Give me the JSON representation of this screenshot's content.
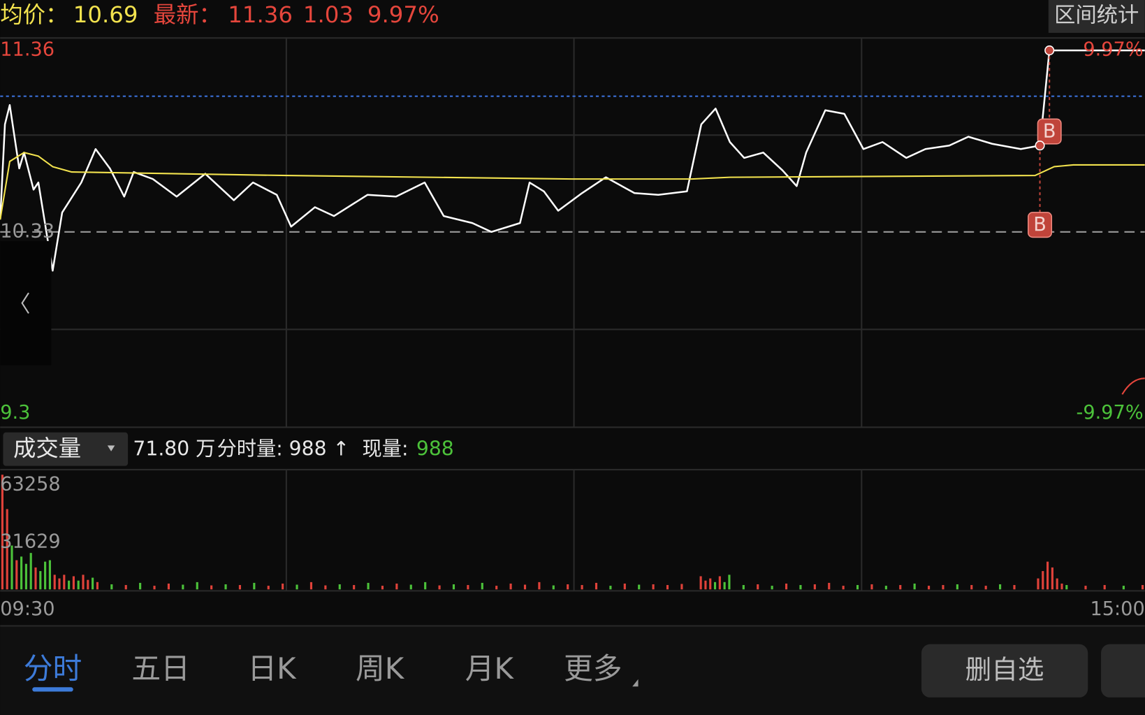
{
  "quote": {
    "avg_label": "均价：",
    "avg": "10.69",
    "last_label": "最新：",
    "last": "11.36",
    "change": "1.03",
    "change_pct": "9.97%",
    "range_stats": "区间统计"
  },
  "volume_header": {
    "selector": "成交量",
    "total": "71.80 万",
    "tick_volume": "分时量: 988 ↑",
    "now_label": "现量:",
    "now_value": "988"
  },
  "tabs": [
    "分时",
    "五日",
    "日K",
    "周K",
    "月K",
    "更多"
  ],
  "button": "删自选",
  "chart_data": [
    {
      "type": "line",
      "xlim": [
        0,
        240
      ],
      "ylim": [
        9.3,
        11.36
      ],
      "yticks": [
        11.36,
        10.33,
        9.3
      ],
      "ytick_colors": [
        "#e5463c",
        "#9a9a9a",
        "#4cc23a"
      ],
      "y2lim": [
        -9.97,
        9.97
      ],
      "y2ticks": [
        {
          "value": 9.97,
          "label": "9.97%"
        },
        {
          "value": -9.97,
          "label": "-9.97%"
        }
      ],
      "y2tick_colors": [
        "#e5463c",
        "#4cc23a"
      ],
      "ref_line": 11.1,
      "ref_color": "#3b6fd6",
      "series": [
        {
          "color": "#ffffff",
          "x": [
            0,
            1,
            2,
            4,
            5,
            7,
            8,
            11,
            13,
            17,
            20,
            23,
            26,
            28,
            32,
            37,
            43,
            49,
            53,
            58,
            61,
            66,
            70,
            77,
            83,
            89,
            93,
            99,
            103,
            109,
            111,
            114,
            117,
            122,
            127,
            133,
            138,
            144,
            147,
            150,
            153,
            156,
            160,
            164,
            167,
            169,
            173,
            177,
            181,
            185,
            190,
            194,
            199,
            203,
            208,
            214,
            218,
            220,
            240
          ],
          "values": [
            10.4,
            10.94,
            11.05,
            10.69,
            10.78,
            10.57,
            10.61,
            10.11,
            10.44,
            10.61,
            10.8,
            10.69,
            10.53,
            10.67,
            10.63,
            10.53,
            10.66,
            10.51,
            10.61,
            10.54,
            10.36,
            10.47,
            10.42,
            10.54,
            10.53,
            10.61,
            10.42,
            10.38,
            10.33,
            10.38,
            10.61,
            10.56,
            10.45,
            10.55,
            10.64,
            10.55,
            10.54,
            10.56,
            10.94,
            11.03,
            10.84,
            10.75,
            10.78,
            10.68,
            10.59,
            10.78,
            11.02,
            11.0,
            10.8,
            10.84,
            10.75,
            10.8,
            10.82,
            10.87,
            10.83,
            10.8,
            10.82,
            11.36,
            11.36
          ]
        },
        {
          "color": "#f2e24e",
          "x": [
            0,
            2,
            5,
            8,
            11,
            15,
            60,
            120,
            145,
            153,
            217,
            221,
            225,
            240
          ],
          "values": [
            10.4,
            10.73,
            10.78,
            10.76,
            10.7,
            10.67,
            10.65,
            10.63,
            10.63,
            10.64,
            10.65,
            10.7,
            10.71,
            10.71
          ]
        }
      ],
      "markers": [
        {
          "x": 220,
          "y": 10.9,
          "label": "B"
        },
        {
          "x": 218,
          "y": 10.37,
          "label": "B"
        }
      ],
      "marker_color": "#c0443a"
    },
    {
      "type": "bar",
      "xlim": [
        0,
        240
      ],
      "ylim": [
        0,
        63258
      ],
      "yticks": [
        63258,
        31629
      ],
      "xticks": [
        {
          "value": 0,
          "label": "09:30"
        },
        {
          "value": 240,
          "label": "15:00"
        }
      ],
      "x": [
        0,
        1,
        2,
        3,
        4,
        5,
        6,
        7,
        8,
        9,
        10,
        11,
        12,
        13,
        14,
        15,
        16,
        17,
        18,
        19,
        20,
        23,
        26,
        29,
        32,
        35,
        38,
        41,
        44,
        47,
        50,
        53,
        56,
        59,
        62,
        65,
        68,
        71,
        74,
        77,
        80,
        83,
        86,
        89,
        92,
        95,
        98,
        101,
        104,
        107,
        110,
        113,
        116,
        119,
        122,
        125,
        128,
        131,
        134,
        137,
        140,
        143,
        147,
        148,
        149,
        150,
        151,
        152,
        153,
        156,
        159,
        162,
        165,
        168,
        171,
        174,
        177,
        180,
        183,
        186,
        189,
        192,
        195,
        198,
        201,
        204,
        207,
        210,
        213,
        218,
        219,
        220,
        221,
        222,
        223,
        224,
        228,
        232,
        236,
        240
      ],
      "values": [
        63258,
        44300,
        24200,
        16100,
        18100,
        14100,
        20100,
        12100,
        10100,
        15300,
        16100,
        8060,
        6050,
        8060,
        4840,
        7250,
        4840,
        8060,
        5240,
        6450,
        4030,
        2800,
        2400,
        3600,
        2000,
        3200,
        2600,
        4000,
        2200,
        2800,
        2400,
        3600,
        2000,
        3200,
        2600,
        4000,
        2200,
        2800,
        2400,
        3600,
        2000,
        3200,
        2600,
        4000,
        2200,
        2800,
        2400,
        3600,
        2000,
        3200,
        2600,
        4000,
        2200,
        2800,
        2400,
        3600,
        2000,
        3200,
        2600,
        2800,
        2400,
        3000,
        7250,
        4840,
        6050,
        4030,
        7250,
        4030,
        8060,
        2400,
        2800,
        2000,
        3200,
        2400,
        2800,
        3600,
        2000,
        2400,
        2800,
        2000,
        2400,
        3200,
        2000,
        2400,
        2800,
        2400,
        2000,
        2800,
        2400,
        6050,
        10100,
        15300,
        12100,
        6050,
        3200,
        2400,
        2000,
        2400,
        2000,
        2400
      ],
      "bar_colors": [
        "#e0423a",
        "#e0423a",
        "#4cc23a",
        "#e0423a",
        "#4cc23a",
        "#4cc23a",
        "#4cc23a",
        "#e0423a",
        "#4cc23a",
        "#4cc23a",
        "#4cc23a",
        "#e0423a",
        "#e0423a",
        "#e0423a",
        "#4cc23a",
        "#e0423a",
        "#4cc23a",
        "#e0423a",
        "#e0423a",
        "#4cc23a",
        "#e0423a",
        "#4cc23a",
        "#e0423a",
        "#4cc23a",
        "#e0423a",
        "#e0423a",
        "#4cc23a",
        "#4cc23a",
        "#e0423a",
        "#4cc23a",
        "#e0423a",
        "#4cc23a",
        "#e0423a",
        "#e0423a",
        "#4cc23a",
        "#e0423a",
        "#e0423a",
        "#4cc23a",
        "#e0423a",
        "#4cc23a",
        "#e0423a",
        "#e0423a",
        "#4cc23a",
        "#4cc23a",
        "#e0423a",
        "#4cc23a",
        "#e0423a",
        "#4cc23a",
        "#e0423a",
        "#e0423a",
        "#e0423a",
        "#e0423a",
        "#4cc23a",
        "#e0423a",
        "#e0423a",
        "#e0423a",
        "#4cc23a",
        "#e0423a",
        "#4cc23a",
        "#e0423a",
        "#e0423a",
        "#e0423a",
        "#e0423a",
        "#e0423a",
        "#e0423a",
        "#4cc23a",
        "#e0423a",
        "#4cc23a",
        "#4cc23a",
        "#4cc23a",
        "#e0423a",
        "#4cc23a",
        "#e0423a",
        "#4cc23a",
        "#e0423a",
        "#e0423a",
        "#e0423a",
        "#4cc23a",
        "#e0423a",
        "#4cc23a",
        "#e0423a",
        "#4cc23a",
        "#e0423a",
        "#e0423a",
        "#4cc23a",
        "#e0423a",
        "#e0423a",
        "#4cc23a",
        "#e0423a",
        "#e0423a",
        "#e0423a",
        "#e0423a",
        "#e0423a",
        "#e0423a",
        "#e0423a",
        "#4cc23a",
        "#e0423a",
        "#e0423a",
        "#4cc23a",
        "#e0423a"
      ]
    }
  ]
}
